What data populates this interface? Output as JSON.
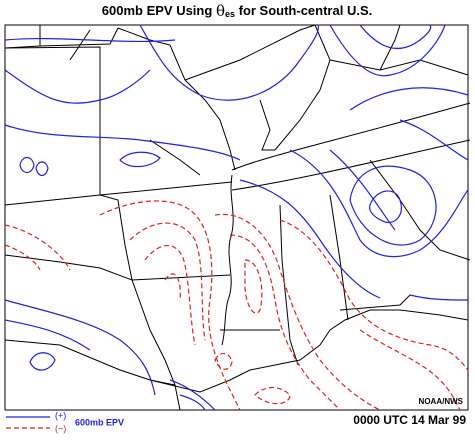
{
  "header": {
    "title_prefix": "600mb EPV Using",
    "title_symbol": "θ",
    "title_subscript": "es",
    "title_suffix": "for South-central U.S."
  },
  "map": {
    "credit": "NOAA/NWS"
  },
  "legend": {
    "positive": "(+)",
    "negative": "(−)",
    "label": "600mb EPV"
  },
  "footer": {
    "time": "0000 UTC 14 Mar 99"
  }
}
